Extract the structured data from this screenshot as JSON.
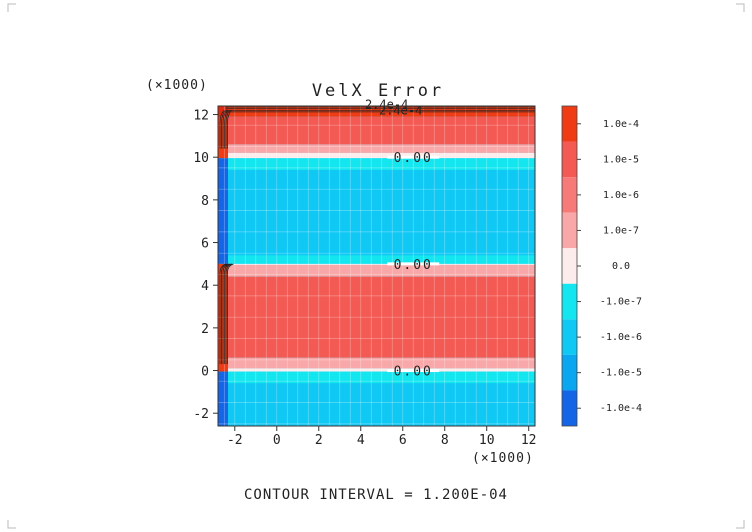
{
  "chart_data": {
    "type": "heatmap",
    "title": "VelX Error",
    "x_multiplier": "(×1000)",
    "y_multiplier": "(×1000)",
    "xlim": [
      -2.8,
      12.3
    ],
    "ylim": [
      -2.6,
      12.4
    ],
    "x_ticks": [
      -2,
      0,
      2,
      4,
      6,
      8,
      10,
      12
    ],
    "y_ticks": [
      -2,
      0,
      2,
      4,
      6,
      8,
      10,
      12
    ],
    "x_tick_labels": [
      "-2",
      "0",
      "2",
      "4",
      "6",
      "8",
      "10",
      "12"
    ],
    "y_tick_labels": [
      "-2",
      "0",
      "2",
      "4",
      "6",
      "8",
      "10",
      "12"
    ],
    "contour_note": "CONTOUR INTERVAL = 1.200E-04",
    "colorbar": {
      "labels": [
        "1.0e-4",
        "1.0e-5",
        "1.0e-6",
        "1.0e-7",
        "0.0",
        "-1.0e-7",
        "-1.0e-6",
        "-1.0e-5",
        "-1.0e-4"
      ],
      "colors": [
        "#f03c14",
        "#f45a54",
        "#f67a78",
        "#f8a8a8",
        "#fdecec",
        "#14e6f0",
        "#10c8f4",
        "#0aa6f0",
        "#1466e6"
      ]
    },
    "bands": [
      {
        "y0": 11.9,
        "y1": 12.4,
        "color": "#f03c14"
      },
      {
        "y0": 10.6,
        "y1": 11.9,
        "color": "#f45a54"
      },
      {
        "y0": 10.2,
        "y1": 10.6,
        "color": "#f8a8a8"
      },
      {
        "y0": 9.95,
        "y1": 10.2,
        "color": "#fdecec"
      },
      {
        "y0": 9.4,
        "y1": 9.95,
        "color": "#14e6f0"
      },
      {
        "y0": 5.4,
        "y1": 9.4,
        "color": "#10c8f4"
      },
      {
        "y0": 5.0,
        "y1": 5.4,
        "color": "#14e6f0"
      },
      {
        "y0": 4.95,
        "y1": 5.0,
        "color": "#fdecec"
      },
      {
        "y0": 4.4,
        "y1": 4.95,
        "color": "#f8a8a8"
      },
      {
        "y0": 0.6,
        "y1": 4.4,
        "color": "#f45a54"
      },
      {
        "y0": 0.1,
        "y1": 0.6,
        "color": "#f8a8a8"
      },
      {
        "y0": -0.05,
        "y1": 0.1,
        "color": "#fdecec"
      },
      {
        "y0": -0.6,
        "y1": -0.05,
        "color": "#14e6f0"
      },
      {
        "y0": -2.6,
        "y1": -0.6,
        "color": "#10c8f4"
      }
    ],
    "contour_labels": [
      {
        "text": "0.00",
        "x": 6.5,
        "y": 10.0
      },
      {
        "text": "0.00",
        "x": 6.5,
        "y": 5.0
      },
      {
        "text": "0.00",
        "x": 6.5,
        "y": 0.0
      }
    ],
    "max_annotations": [
      "2.4e-4",
      "2.4e-4"
    ],
    "grid": true
  }
}
